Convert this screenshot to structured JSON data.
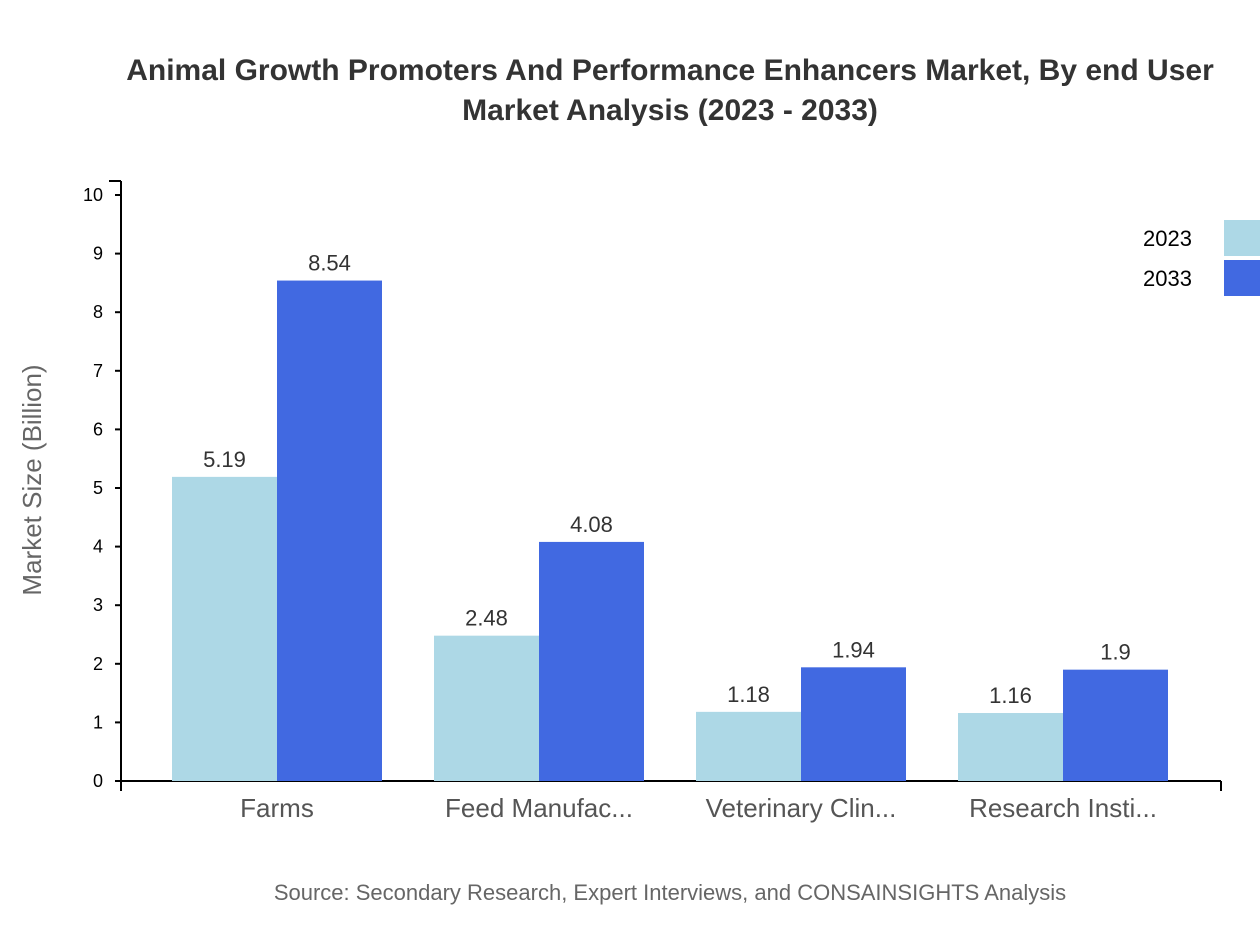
{
  "chart_data": {
    "type": "bar",
    "title_line1": "Animal Growth Promoters And Performance Enhancers Market, By end User",
    "title_line2": "Market Analysis (2023 - 2033)",
    "xlabel": "",
    "ylabel": "Market Size (Billion)",
    "ylim": [
      0,
      10
    ],
    "yticks": [
      "0",
      "1",
      "2",
      "3",
      "4",
      "5",
      "6",
      "7",
      "8",
      "9",
      "10"
    ],
    "categories": [
      "Farms",
      "Feed Manufac...",
      "Veterinary Clin...",
      "Research Insti..."
    ],
    "series": [
      {
        "name": "2023",
        "color": "#ADD8E6",
        "values": [
          5.19,
          2.48,
          1.18,
          1.16
        ]
      },
      {
        "name": "2033",
        "color": "#4169E1",
        "values": [
          8.54,
          4.08,
          1.94,
          1.9
        ]
      }
    ],
    "legend_position": "top-right",
    "grid": false,
    "source": "Source: Secondary Research, Expert Interviews, and CONSAINSIGHTS Analysis"
  }
}
